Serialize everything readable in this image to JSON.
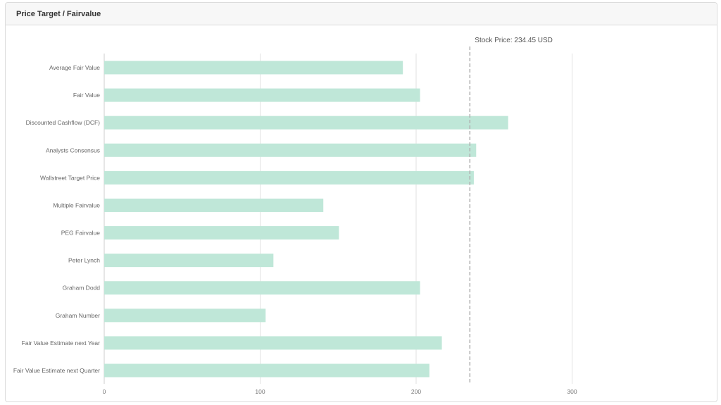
{
  "panel": {
    "title": "Price Target / Fairvalue"
  },
  "colors": {
    "bar": "#bfe7d8",
    "grid": "#e2e2e2",
    "axis": "#cccccc",
    "reference_line": "#b0b0b0"
  },
  "chart_data": {
    "type": "bar",
    "orientation": "horizontal",
    "title": "",
    "xlabel": "",
    "ylabel": "",
    "categories": [
      "Average Fair Value",
      "Fair Value",
      "Discounted Cashflow (DCF)",
      "Analysts Consensus",
      "Wallstreet Target Price",
      "Multiple Fairvalue",
      "PEG Fairvalue",
      "Peter Lynch",
      "Graham Dodd",
      "Graham Number",
      "Fair Value Estimate next Year",
      "Fair Value Estimate next Quarter"
    ],
    "values": [
      191.5,
      202.5,
      259,
      238.5,
      237,
      140.5,
      150.5,
      108.5,
      202.5,
      103.5,
      216.5,
      208.5
    ],
    "xlim": [
      0,
      380
    ],
    "xticks": [
      "0",
      "100",
      "200",
      "300"
    ],
    "grid": true,
    "reference_line": {
      "value": 234.45,
      "label": "Stock Price: 234.45 USD",
      "style": "dashed"
    }
  }
}
